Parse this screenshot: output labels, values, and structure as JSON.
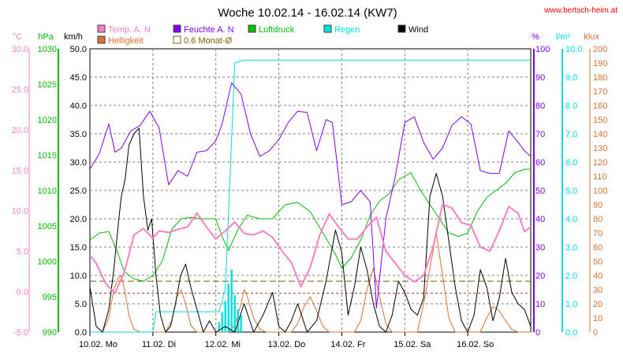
{
  "title": "Woche 10.02.14 - 16.02.14 (KW7)",
  "source": "www.bertsch-heim.at",
  "colors": {
    "temp": "#ff80c0",
    "helligkeit": "#e07030",
    "feuchte": "#8000ff",
    "monat": "#806000",
    "luftdruck": "#00c000",
    "regen": "#00e0e0",
    "wind": "#000000",
    "source": "#ff0000",
    "grid": "#808080"
  },
  "chart_data": {
    "type": "line",
    "title": "Woche 10.02.14 - 16.02.14 (KW7)",
    "legend": [
      {
        "key": "temp",
        "label": "Temp. A. N"
      },
      {
        "key": "feuchte",
        "label": "Feuchte A. N"
      },
      {
        "key": "luftdruck",
        "label": "Luftdruck"
      },
      {
        "key": "regen",
        "label": "Regen"
      },
      {
        "key": "wind",
        "label": "Wind"
      },
      {
        "key": "helligkeit",
        "label": "Helligkeit"
      },
      {
        "key": "monat",
        "label": "0.6 Monat-Ø"
      }
    ],
    "x_labels": [
      "10.02.  Mo",
      "11.02.  Di",
      "12.02.  Mi",
      "13.02.  Do",
      "14.02.  Fr",
      "15.02.  Sa",
      "16.02.  So"
    ],
    "x_range_days": [
      0,
      7
    ],
    "axes": [
      {
        "key": "temp",
        "unit": "°C",
        "min": -5,
        "max": 30,
        "ticks": [
          "30.0",
          "25.0",
          "20.0",
          "15.0",
          "10.0",
          "5.0",
          "0.0",
          "-5.0"
        ]
      },
      {
        "key": "luftdruck",
        "unit": "hPa",
        "min": 990,
        "max": 1030,
        "ticks": [
          "1030",
          "1025",
          "1020",
          "1015",
          "1010",
          "1005",
          "1000",
          "995",
          "990"
        ]
      },
      {
        "key": "wind",
        "unit": "km/h",
        "min": 0,
        "max": 50,
        "ticks": [
          "50.0",
          "45.0",
          "40.0",
          "35.0",
          "30.0",
          "25.0",
          "20.0",
          "15.0",
          "10.0",
          "5.0",
          "0.0"
        ]
      },
      {
        "key": "feuchte",
        "unit": "%",
        "min": 0,
        "max": 100,
        "ticks": [
          "100",
          "90",
          "80",
          "70",
          "60",
          "50",
          "40",
          "30",
          "20",
          "10",
          "0"
        ]
      },
      {
        "key": "regen",
        "unit": "l/m²",
        "min": 0,
        "max": 10,
        "ticks": [
          "10.0",
          "9.0",
          "8.0",
          "7.0",
          "6.0",
          "5.0",
          "4.0",
          "3.0",
          "2.0",
          "1.0",
          "0.0"
        ]
      },
      {
        "key": "helligkeit",
        "unit": "klux",
        "min": 0,
        "max": 200,
        "ticks": [
          "200",
          "190",
          "180",
          "170",
          "160",
          "150",
          "140",
          "130",
          "120",
          "110",
          "100",
          "90",
          "80",
          "70",
          "60",
          "50",
          "40",
          "30",
          "20",
          "10",
          "0"
        ]
      }
    ],
    "series": [
      {
        "key": "temp",
        "name": "Temp. A. N",
        "axis": "temp",
        "x": [
          0,
          0.1,
          0.25,
          0.4,
          0.55,
          0.7,
          0.85,
          1.0,
          1.1,
          1.25,
          1.4,
          1.55,
          1.7,
          1.85,
          2.0,
          2.15,
          2.3,
          2.45,
          2.6,
          2.75,
          2.9,
          3.05,
          3.2,
          3.35,
          3.5,
          3.65,
          3.8,
          3.95,
          4.1,
          4.25,
          4.4,
          4.55,
          4.7,
          4.85,
          5.0,
          5.15,
          5.3,
          5.45,
          5.6,
          5.75,
          5.9,
          6.05,
          6.2,
          6.35,
          6.5,
          6.65,
          6.8,
          6.9,
          7.0
        ],
        "y": [
          4.5,
          3.5,
          1.0,
          -0.2,
          2.5,
          7.0,
          7.8,
          6.6,
          7.5,
          7.3,
          7.7,
          8.0,
          9.7,
          8.0,
          6.5,
          7.5,
          8.6,
          7.2,
          7.0,
          7.5,
          6.7,
          5.0,
          3.6,
          0.6,
          3.0,
          7.0,
          9.6,
          8.0,
          6.5,
          6.5,
          8.0,
          9.2,
          5.0,
          3.5,
          2.0,
          1.2,
          2.0,
          5.5,
          10.8,
          10.3,
          8.5,
          8.2,
          5.5,
          5.0,
          7.5,
          10.5,
          9.7,
          7.4,
          8.0
        ]
      },
      {
        "key": "luftdruck",
        "name": "Luftdruck",
        "axis": "luftdruck",
        "x": [
          0,
          0.15,
          0.3,
          0.45,
          0.55,
          0.7,
          0.85,
          1.0,
          1.15,
          1.3,
          1.45,
          1.6,
          1.8,
          2.0,
          2.1,
          2.2,
          2.35,
          2.5,
          2.7,
          2.9,
          3.1,
          3.3,
          3.5,
          3.7,
          3.9,
          4.0,
          4.15,
          4.3,
          4.45,
          4.6,
          4.75,
          4.9,
          5.1,
          5.25,
          5.4,
          5.55,
          5.7,
          5.85,
          6.0,
          6.15,
          6.3,
          6.45,
          6.6,
          6.75,
          6.9,
          7.0
        ],
        "y": [
          1003.0,
          1004.0,
          1004.2,
          1001.0,
          998.5,
          997.5,
          997.2,
          998.0,
          1000.0,
          1004.5,
          1006.0,
          1006.2,
          1006.0,
          1006.0,
          1003.5,
          1001.5,
          1004.5,
          1006.5,
          1006.0,
          1006.0,
          1008.0,
          1008.3,
          1007.0,
          1004.0,
          1001.0,
          999.0,
          1000.5,
          1003.0,
          1006.5,
          1008.5,
          1009.5,
          1011.5,
          1012.5,
          1010.0,
          1008.0,
          1006.0,
          1004.0,
          1003.5,
          1004.0,
          1007.0,
          1009.0,
          1010.0,
          1011.0,
          1012.5,
          1013.0,
          1013.0
        ]
      },
      {
        "key": "feuchte",
        "name": "Feuchte A. N",
        "axis": "feuchte",
        "x": [
          0,
          0.15,
          0.3,
          0.4,
          0.5,
          0.65,
          0.8,
          0.95,
          1.1,
          1.25,
          1.4,
          1.55,
          1.7,
          1.85,
          2.0,
          2.1,
          2.25,
          2.4,
          2.55,
          2.7,
          2.85,
          3.0,
          3.15,
          3.3,
          3.45,
          3.6,
          3.75,
          3.85,
          4.0,
          4.15,
          4.3,
          4.45,
          4.55,
          4.7,
          4.85,
          5.0,
          5.15,
          5.3,
          5.45,
          5.6,
          5.75,
          5.9,
          6.05,
          6.2,
          6.35,
          6.5,
          6.65,
          6.8,
          6.9,
          7.0
        ],
        "y": [
          57.5,
          63.0,
          73.5,
          63.5,
          65.0,
          71.0,
          73.0,
          78.0,
          72.0,
          52.0,
          57.0,
          55.0,
          63.5,
          64.0,
          67.5,
          73.5,
          88.0,
          84.0,
          70.0,
          62.0,
          64.0,
          68.0,
          74.0,
          78.0,
          77.5,
          64.0,
          75.0,
          74.0,
          45.0,
          46.0,
          50.0,
          46.0,
          8.5,
          40.0,
          55.0,
          74.0,
          76.0,
          67.0,
          61.0,
          65.0,
          73.0,
          76.0,
          73.5,
          57.0,
          56.0,
          56.0,
          71.0,
          67.0,
          64.0,
          62.0
        ]
      },
      {
        "key": "wind",
        "name": "Wind",
        "axis": "wind",
        "x": [
          0,
          0.1,
          0.2,
          0.3,
          0.38,
          0.46,
          0.5,
          0.56,
          0.62,
          0.7,
          0.78,
          0.85,
          0.92,
          0.98,
          1.05,
          1.12,
          1.2,
          1.28,
          1.36,
          1.44,
          1.52,
          1.6,
          1.7,
          1.8,
          1.9,
          2.0,
          2.15,
          2.3,
          2.45,
          2.6,
          2.75,
          2.9,
          3.0,
          3.1,
          3.2,
          3.3,
          3.45,
          3.6,
          3.75,
          3.9,
          4.0,
          4.1,
          4.2,
          4.3,
          4.4,
          4.5,
          4.6,
          4.7,
          4.8,
          4.9,
          5.0,
          5.1,
          5.2,
          5.3,
          5.4,
          5.5,
          5.6,
          5.7,
          5.8,
          5.9,
          6.0,
          6.1,
          6.2,
          6.3,
          6.4,
          6.5,
          6.6,
          6.7,
          6.8,
          6.9,
          7.0
        ],
        "y": [
          8,
          1,
          0,
          4,
          11,
          20,
          24,
          27,
          33,
          35,
          36,
          24,
          18,
          20,
          10,
          3,
          0,
          1,
          5,
          10,
          12,
          8,
          4,
          0,
          2,
          0,
          1,
          0,
          5,
          0,
          3,
          7,
          1,
          0,
          2,
          5,
          0,
          2,
          9,
          18,
          14,
          3,
          8,
          15,
          11,
          5,
          1,
          0,
          3,
          9,
          7,
          4,
          3,
          6,
          24,
          28,
          24,
          16,
          8,
          2,
          0,
          3,
          11,
          8,
          2,
          6,
          13,
          7,
          5,
          4,
          1
        ]
      },
      {
        "key": "regen",
        "name": "Regen",
        "axis": "regen",
        "x": [
          0,
          1.0,
          1.05,
          2.05,
          2.15,
          2.3,
          2.45,
          6.99
        ],
        "y": [
          0,
          0,
          0.72,
          0.72,
          1.5,
          9.5,
          9.6,
          9.6
        ],
        "bars_x": [
          2.05,
          2.1,
          2.15,
          2.2,
          2.25,
          2.3,
          2.35,
          2.4
        ],
        "bars_y": [
          0.35,
          0.7,
          1.1,
          1.7,
          2.2,
          1.3,
          0.8,
          0.6
        ]
      },
      {
        "key": "helligkeit",
        "name": "Helligkeit",
        "axis": "helligkeit",
        "x": [
          0,
          0.2,
          0.3,
          0.38,
          0.45,
          0.5,
          0.55,
          0.62,
          0.7,
          0.8,
          1.0,
          1.2,
          1.3,
          1.38,
          1.45,
          1.52,
          1.6,
          1.7,
          1.8,
          2.0,
          2.2,
          2.3,
          2.4,
          2.45,
          2.5,
          2.6,
          2.7,
          2.8,
          3.0,
          3.2,
          3.3,
          3.4,
          3.5,
          3.6,
          3.7,
          3.8,
          4.0,
          4.2,
          4.3,
          4.4,
          4.5,
          4.6,
          4.7,
          4.8,
          5.0,
          5.2,
          5.3,
          5.4,
          5.5,
          5.6,
          5.7,
          5.8,
          6.0,
          6.2,
          6.3,
          6.4,
          6.5,
          6.6,
          6.7,
          6.8,
          7.0
        ],
        "y": [
          0,
          0,
          10,
          30,
          38,
          40,
          30,
          12,
          2,
          0,
          0,
          0,
          8,
          25,
          30,
          20,
          5,
          0,
          0,
          0,
          0,
          5,
          20,
          30,
          25,
          10,
          2,
          0,
          0,
          0,
          6,
          18,
          25,
          15,
          4,
          0,
          0,
          0,
          8,
          30,
          45,
          25,
          6,
          0,
          0,
          0,
          20,
          45,
          70,
          40,
          10,
          0,
          0,
          0,
          10,
          18,
          15,
          8,
          2,
          0,
          0
        ]
      },
      {
        "key": "monat",
        "name": "0.6 Monat-Ø",
        "axis": "temp",
        "x": [
          0,
          7
        ],
        "y": [
          1.3,
          1.3
        ]
      },
      {
        "key": "monat_upper",
        "name": "",
        "axis": "temp",
        "x": [
          0,
          7
        ],
        "y": [
          -0.2,
          -0.2
        ]
      }
    ]
  }
}
